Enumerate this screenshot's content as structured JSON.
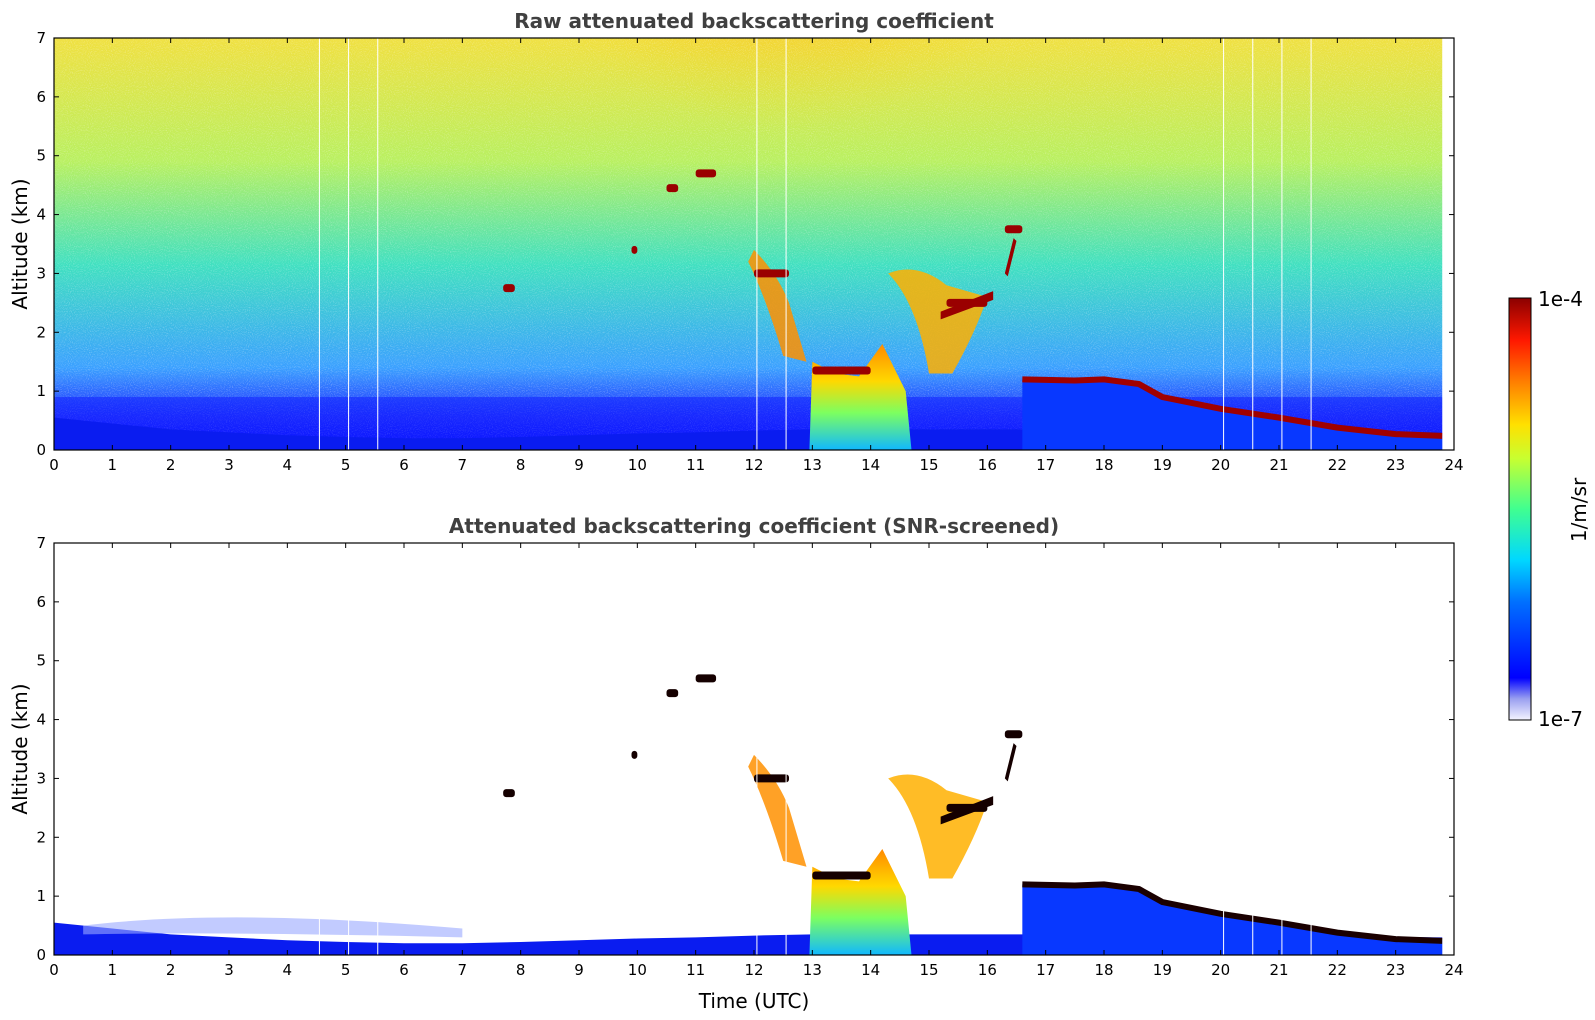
{
  "chart_data": [
    {
      "type": "heatmap",
      "title": "Raw attenuated backscattering coefficient",
      "xlabel": "",
      "ylabel": "Altitude (km)",
      "xlim": [
        0,
        24
      ],
      "ylim": [
        0,
        7
      ],
      "xticks": [
        "0",
        "1",
        "2",
        "3",
        "4",
        "5",
        "6",
        "7",
        "8",
        "9",
        "10",
        "11",
        "12",
        "13",
        "14",
        "15",
        "16",
        "17",
        "18",
        "19",
        "20",
        "21",
        "22",
        "23",
        "24"
      ],
      "yticks": [
        "0",
        "1",
        "2",
        "3",
        "4",
        "5",
        "6",
        "7"
      ],
      "screened": false,
      "features": {
        "boundary_layer": [
          [
            0,
            0.55
          ],
          [
            1,
            0.45
          ],
          [
            2,
            0.35
          ],
          [
            3,
            0.3
          ],
          [
            4,
            0.25
          ],
          [
            5,
            0.22
          ],
          [
            6,
            0.2
          ],
          [
            7,
            0.2
          ],
          [
            8,
            0.22
          ],
          [
            9,
            0.25
          ],
          [
            10,
            0.28
          ],
          [
            11,
            0.3
          ],
          [
            12,
            0.33
          ],
          [
            13,
            0.35
          ]
        ],
        "cloud_layer_afternoon": [
          [
            16.6,
            1.2
          ],
          [
            17.5,
            1.18
          ],
          [
            18.0,
            1.2
          ],
          [
            18.6,
            1.12
          ],
          [
            19.0,
            0.9
          ],
          [
            20.0,
            0.7
          ],
          [
            21.0,
            0.55
          ],
          [
            22.0,
            0.38
          ],
          [
            23.0,
            0.27
          ],
          [
            23.8,
            0.24
          ]
        ],
        "elevated_layers": [
          {
            "x": [
              10.5,
              10.7
            ],
            "y": 4.45
          },
          {
            "x": [
              11.0,
              11.35
            ],
            "y": 4.7
          },
          {
            "x": [
              9.9,
              10.0
            ],
            "y": 3.4
          },
          {
            "x": [
              7.7,
              7.9
            ],
            "y": 2.75
          },
          {
            "x": [
              12.0,
              12.6
            ],
            "y": 3.0
          },
          {
            "x": [
              15.3,
              16.0
            ],
            "y": 2.5
          },
          {
            "x": [
              16.3,
              16.6
            ],
            "y": 3.75
          },
          {
            "x": [
              13.0,
              14.0
            ],
            "y": 1.35
          }
        ]
      }
    },
    {
      "type": "heatmap",
      "title": "Attenuated backscattering coefficient (SNR-screened)",
      "xlabel": "Time (UTC)",
      "ylabel": "Altitude (km)",
      "xlim": [
        0,
        24
      ],
      "ylim": [
        0,
        7
      ],
      "xticks": [
        "0",
        "1",
        "2",
        "3",
        "4",
        "5",
        "6",
        "7",
        "8",
        "9",
        "10",
        "11",
        "12",
        "13",
        "14",
        "15",
        "16",
        "17",
        "18",
        "19",
        "20",
        "21",
        "22",
        "23",
        "24"
      ],
      "yticks": [
        "0",
        "1",
        "2",
        "3",
        "4",
        "5",
        "6",
        "7"
      ],
      "screened": true
    }
  ],
  "colorbar": {
    "min_label": "1e-7",
    "max_label": "1e-4",
    "unit_label": "1/m/sr",
    "colormap": "jet"
  },
  "colors": {
    "background": "#ffffff",
    "title": "#404040"
  }
}
